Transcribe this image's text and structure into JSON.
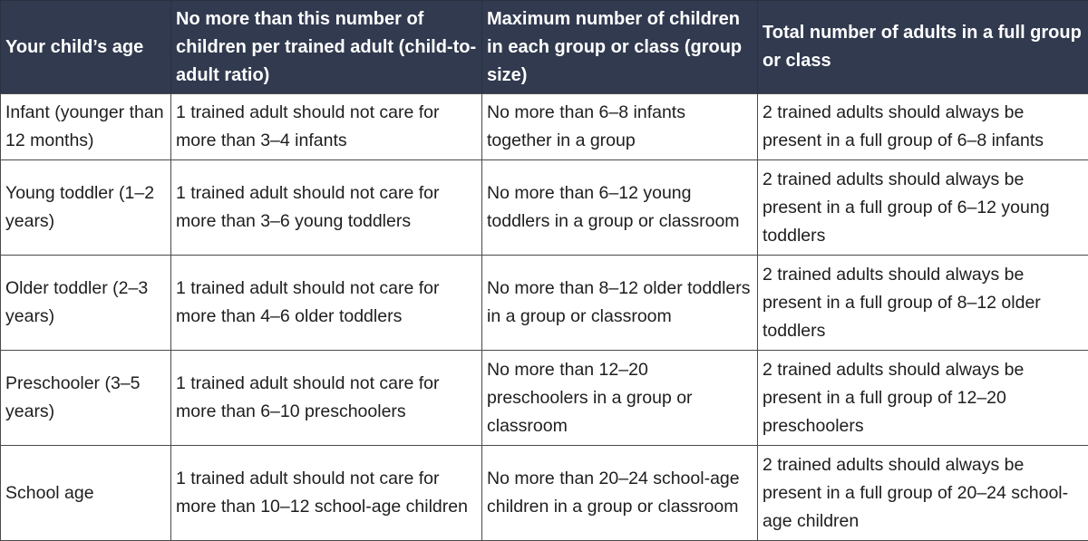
{
  "colors": {
    "header_background": "#313A4F",
    "header_text": "#FFFFFF",
    "body_text": "#1E1E1E",
    "body_background": "#FFFFFF",
    "grid_border": "#4A4A4A"
  },
  "table": {
    "columns": [
      {
        "label": "Your child’s age"
      },
      {
        "label": "No more than this number of children per trained adult (child-to-adult ratio)"
      },
      {
        "label": "Maximum number of children in each group or class (group size)"
      },
      {
        "label": "Total number of adults in a full group or class"
      }
    ],
    "rows": [
      {
        "age": "Infant (younger than 12 months)",
        "ratio": "1 trained adult should not care for more than 3–4 infants",
        "group_size": "No more than 6–8 infants together in a group",
        "adults": "2 trained adults should always be present in a full group of 6–8 infants"
      },
      {
        "age": "Young toddler (1–2 years)",
        "ratio": "1 trained adult should not care for more than 3–6 young toddlers",
        "group_size": "No more than 6–12 young toddlers in a group or classroom",
        "adults": "2 trained adults should always be present in a full group of 6–12 young toddlers"
      },
      {
        "age": "Older toddler (2–3 years)",
        "ratio": "1 trained adult should not care for more than 4–6 older toddlers",
        "group_size": "No more than 8–12 older toddlers in a group or classroom",
        "adults": "2 trained adults should always be present in a full group of 8–12 older toddlers"
      },
      {
        "age": "Preschooler (3–5 years)",
        "ratio": "1 trained adult should not care for more than 6–10 preschoolers",
        "group_size": "No more than 12–20 preschoolers in a group or classroom",
        "adults": "2 trained adults should always be present in a full group of 12–20 preschoolers"
      },
      {
        "age": "School age",
        "ratio": "1 trained adult should not care for more than 10–12 school-age children",
        "group_size": "No more than 20–24 school-age children in a group or classroom",
        "adults": "2 trained adults should always be present in a full group of 20–24 school-age children"
      }
    ]
  }
}
